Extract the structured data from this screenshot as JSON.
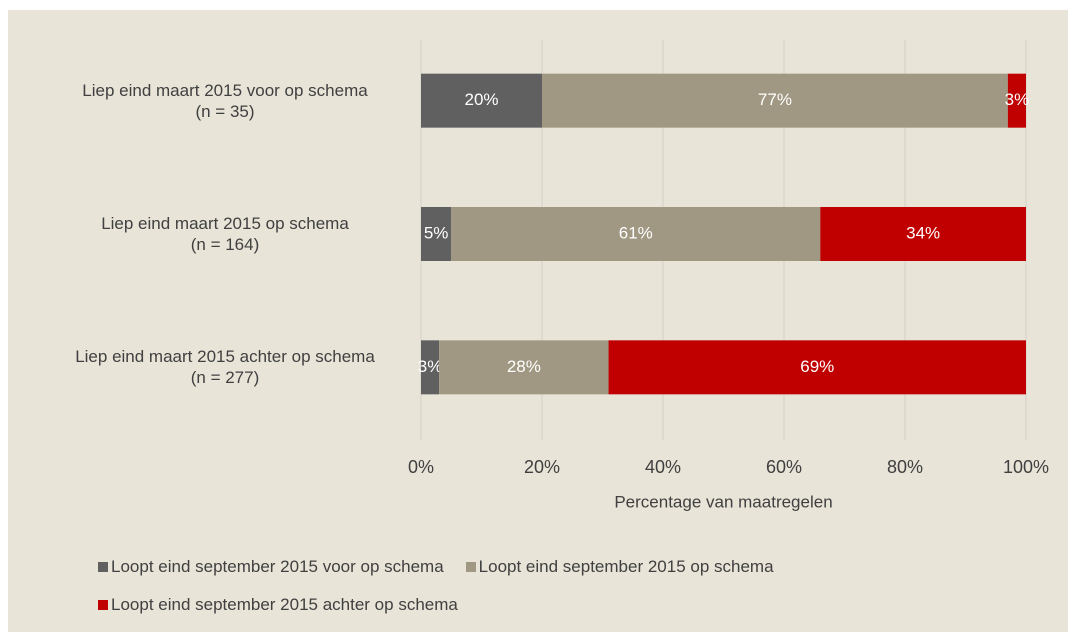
{
  "chart_data": {
    "type": "stacked-bar-horizontal",
    "categories": [
      "Liep eind maart 2015 voor op schema\n(n = 35)",
      "Liep eind maart 2015 op schema\n(n = 164)",
      "Liep eind maart 2015 achter op schema\n(n = 277)"
    ],
    "series": [
      {
        "name": "Loopt eind september 2015 voor op schema",
        "color": "#606060",
        "values": [
          20,
          5,
          3
        ],
        "value_labels": [
          "20%",
          "5%",
          "3%"
        ]
      },
      {
        "name": "Loopt eind september 2015 op schema",
        "color": "#a09882",
        "values": [
          77,
          61,
          28
        ],
        "value_labels": [
          "77%",
          "61%",
          "28%"
        ]
      },
      {
        "name": "Loopt eind september 2015 achter op schema",
        "color": "#c00000",
        "values": [
          3,
          34,
          69
        ],
        "value_labels": [
          "3%",
          "34%",
          "69%"
        ]
      }
    ],
    "xlabel": "Percentage van maatregelen",
    "xlim": [
      0,
      100
    ],
    "xticks": [
      {
        "value": 0,
        "label": "0%"
      },
      {
        "value": 20,
        "label": "20%"
      },
      {
        "value": 40,
        "label": "40%"
      },
      {
        "value": 60,
        "label": "60%"
      },
      {
        "value": 80,
        "label": "80%"
      },
      {
        "value": 100,
        "label": "100%"
      }
    ],
    "grid": true,
    "legend": "bottom"
  }
}
